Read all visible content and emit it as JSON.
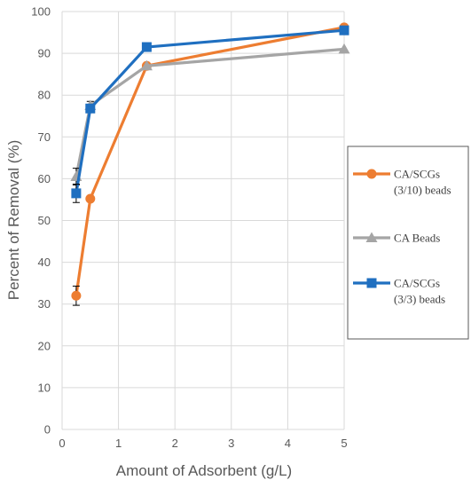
{
  "chart_data": {
    "type": "line",
    "title": "",
    "xlabel": "Amount of Adsorbent  (g/L)",
    "ylabel": "Percent  of Removal (%)",
    "xlim": [
      0,
      5
    ],
    "ylim": [
      0,
      100
    ],
    "xticks": [
      0,
      1,
      2,
      3,
      4,
      5
    ],
    "yticks": [
      0,
      10,
      20,
      30,
      40,
      50,
      60,
      70,
      80,
      90,
      100
    ],
    "grid": "vertical and horizontal",
    "legend_position": "right",
    "series": [
      {
        "name_lines": [
          "CA/SCGs",
          "(3/10) beads"
        ],
        "color": "#ED7D31",
        "marker": "circle",
        "x": [
          0.25,
          0.5,
          1.5,
          5
        ],
        "y": [
          32,
          55.2,
          87,
          96.2
        ],
        "err": [
          2.3,
          0,
          0,
          0
        ]
      },
      {
        "name_lines": [
          "CA Beads"
        ],
        "color": "#A5A5A5",
        "marker": "triangle",
        "x": [
          0.25,
          0.5,
          1.5,
          5
        ],
        "y": [
          60.5,
          77.5,
          87,
          91
        ],
        "err": [
          2,
          1,
          0,
          0
        ]
      },
      {
        "name_lines": [
          "CA/SCGs",
          "(3/3) beads"
        ],
        "color": "#1F6FC0",
        "marker": "square",
        "x": [
          0.25,
          0.5,
          1.5,
          5
        ],
        "y": [
          56.5,
          76.8,
          91.5,
          95.5
        ],
        "err": [
          2.2,
          1,
          0,
          0
        ]
      }
    ]
  }
}
